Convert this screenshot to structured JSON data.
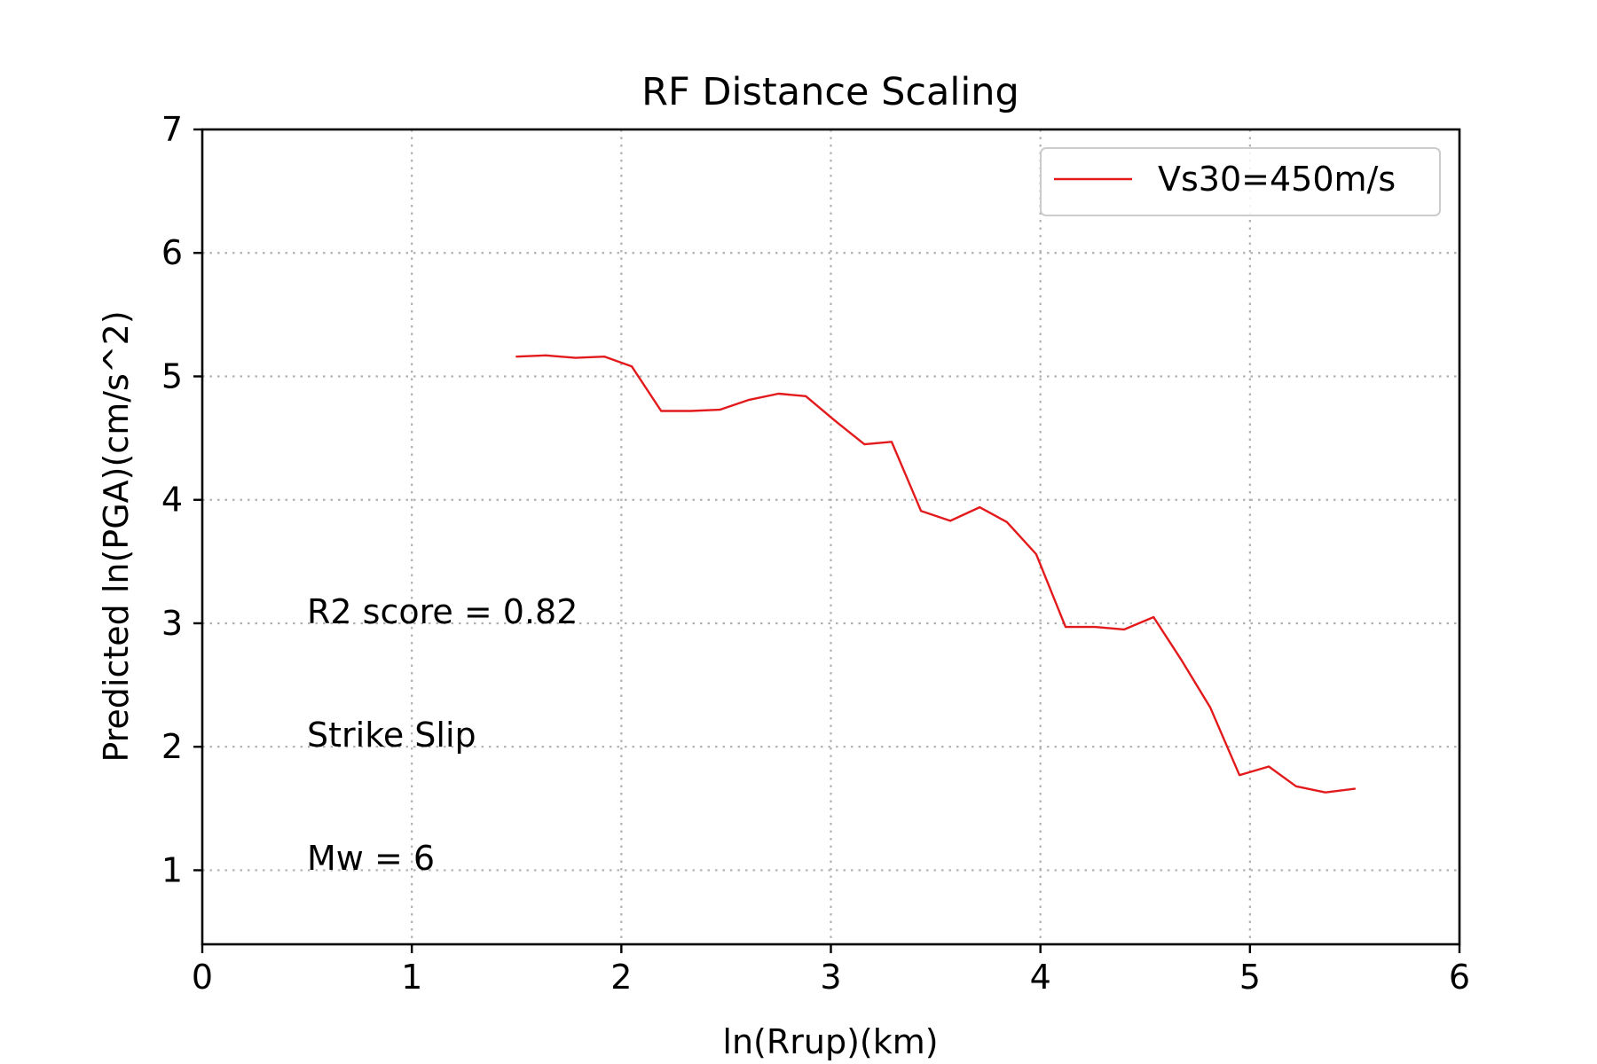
{
  "chart_data": {
    "type": "line",
    "title": "RF Distance Scaling",
    "xlabel": "ln(Rrup)(km)",
    "ylabel": "Predicted ln(PGA)(cm/s^2)",
    "xlim": [
      0,
      6
    ],
    "ylim": [
      0.4,
      7
    ],
    "xticks": [
      "0",
      "1",
      "2",
      "3",
      "4",
      "5",
      "6"
    ],
    "yticks": [
      "1",
      "2",
      "3",
      "4",
      "5",
      "6",
      "7"
    ],
    "grid": true,
    "legend_position": "upper right",
    "series": [
      {
        "name": "Vs30=450m/s",
        "color": "#e31a1c",
        "x": [
          1.5,
          1.64,
          1.78,
          1.92,
          2.05,
          2.19,
          2.33,
          2.47,
          2.61,
          2.75,
          2.88,
          3.02,
          3.16,
          3.29,
          3.43,
          3.57,
          3.71,
          3.84,
          3.98,
          4.12,
          4.26,
          4.4,
          4.54,
          4.67,
          4.81,
          4.95,
          5.09,
          5.22,
          5.36,
          5.5
        ],
        "y": [
          5.16,
          5.17,
          5.15,
          5.16,
          5.08,
          4.72,
          4.72,
          4.73,
          4.81,
          4.86,
          4.84,
          4.64,
          4.45,
          4.47,
          3.91,
          3.83,
          3.94,
          3.82,
          3.56,
          2.97,
          2.97,
          2.95,
          3.05,
          2.71,
          2.32,
          1.77,
          1.84,
          1.68,
          1.63,
          1.66
        ]
      }
    ],
    "annotations": [
      "R2 score = 0.82",
      "Strike Slip",
      "Mw = 6"
    ]
  }
}
